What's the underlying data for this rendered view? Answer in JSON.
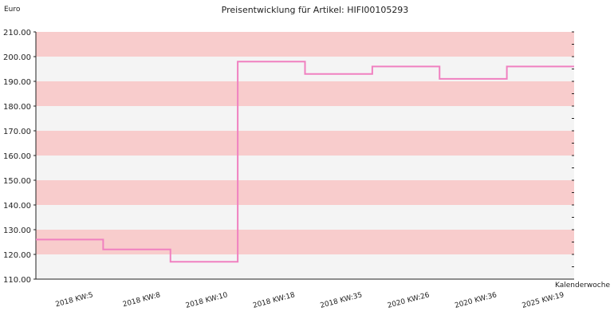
{
  "chart_data": {
    "type": "line",
    "step": true,
    "title": "Preisentwicklung für Artikel: HIFI00105293",
    "ylabel": "Euro",
    "xlabel": "Kalenderwoche",
    "ylim": [
      110,
      210
    ],
    "y_ticks": [
      "110.00",
      "120.00",
      "130.00",
      "140.00",
      "150.00",
      "160.00",
      "170.00",
      "180.00",
      "190.00",
      "200.00",
      "210.00"
    ],
    "categories": [
      "2018 KW:5",
      "2018 KW:8",
      "2018 KW:10",
      "2018 KW:18",
      "2018 KW:35",
      "2020 KW:26",
      "2020 KW:36",
      "2025 KW:19"
    ],
    "series": [
      {
        "values": [
          126,
          122,
          117,
          198,
          193,
          196,
          191,
          196
        ]
      }
    ],
    "line_color": "#f080c0",
    "band_colors": [
      "#f8cccc",
      "#f4f4f4"
    ],
    "grid": false,
    "legend": "none"
  }
}
